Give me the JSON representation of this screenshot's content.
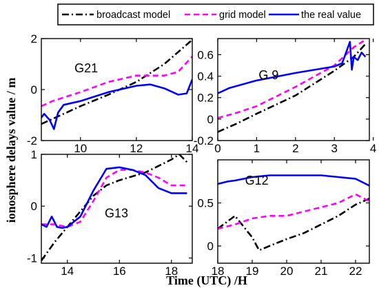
{
  "figure": {
    "ylabel": "ionosphere delays value / m",
    "xlabel": "Time (UTC) /H"
  },
  "legend": [
    {
      "name": "broadcast model",
      "color": "#000000",
      "dash": "dashdot"
    },
    {
      "name": "grid model",
      "color": "#ff00ff",
      "dash": "dashed"
    },
    {
      "name": "the real value",
      "color": "#0000ff",
      "dash": "solid"
    }
  ],
  "chart_data": [
    {
      "type": "line",
      "title": "G21",
      "xlim": [
        8.6,
        14
      ],
      "ylim": [
        -2,
        2
      ],
      "xticks": [
        10,
        12,
        14
      ],
      "yticks": [
        -2,
        0,
        2
      ],
      "series": [
        {
          "name": "broadcast model",
          "x": [
            8.6,
            9,
            10,
            11,
            12,
            13,
            14
          ],
          "y": [
            -1.35,
            -1.15,
            -0.65,
            -0.2,
            0.3,
            1.0,
            1.95
          ]
        },
        {
          "name": "grid model",
          "x": [
            8.6,
            9,
            10,
            11,
            12,
            12.5,
            13,
            13.5,
            14
          ],
          "y": [
            -0.65,
            -0.45,
            -0.1,
            0.3,
            0.55,
            0.55,
            0.55,
            0.7,
            1.3
          ]
        },
        {
          "name": "the real value",
          "x": [
            8.6,
            8.7,
            8.9,
            9.05,
            9.2,
            9.4,
            10,
            11,
            12,
            12.5,
            13,
            13.5,
            13.8,
            14
          ],
          "y": [
            -1.1,
            -0.95,
            -1.2,
            -1.55,
            -0.9,
            -0.6,
            -0.45,
            -0.1,
            0.15,
            0.2,
            0.05,
            -0.2,
            -0.15,
            0.4
          ]
        }
      ]
    },
    {
      "type": "line",
      "title": "G 9",
      "xlim": [
        0,
        3.9
      ],
      "ylim": [
        -0.2,
        0.75
      ],
      "xticks": [
        0,
        1,
        2,
        3,
        4
      ],
      "yticks": [
        -0.2,
        0,
        0.2,
        0.4,
        0.6
      ],
      "series": [
        {
          "name": "broadcast model",
          "x": [
            0,
            0.5,
            1,
            2,
            3,
            3.5,
            3.8
          ],
          "y": [
            -0.12,
            -0.04,
            0.05,
            0.22,
            0.45,
            0.58,
            0.7
          ]
        },
        {
          "name": "grid model",
          "x": [
            0,
            0.5,
            1,
            2,
            3,
            3.5,
            3.8
          ],
          "y": [
            0.01,
            0.06,
            0.12,
            0.3,
            0.5,
            0.67,
            0.74
          ]
        },
        {
          "name": "the real value",
          "x": [
            0,
            0.3,
            1,
            2,
            3,
            3.2,
            3.3,
            3.4,
            3.45,
            3.5,
            3.6,
            3.7,
            3.8
          ],
          "y": [
            0.24,
            0.29,
            0.36,
            0.43,
            0.49,
            0.52,
            0.62,
            0.72,
            0.46,
            0.58,
            0.55,
            0.62,
            0.58
          ]
        }
      ]
    },
    {
      "type": "line",
      "title": "G13",
      "xlim": [
        13,
        18.8
      ],
      "ylim": [
        -1.1,
        1
      ],
      "xticks": [
        14,
        16,
        18
      ],
      "yticks": [
        -1,
        0,
        1
      ],
      "series": [
        {
          "name": "broadcast model",
          "x": [
            13,
            13.5,
            14,
            14.5,
            15,
            15.5,
            16,
            17,
            18,
            18.3,
            18.6
          ],
          "y": [
            -1.05,
            -0.7,
            -0.4,
            -0.1,
            0.2,
            0.4,
            0.5,
            0.65,
            0.9,
            1.0,
            0.85
          ]
        },
        {
          "name": "grid model",
          "x": [
            13,
            13.5,
            14,
            14.5,
            15,
            15.5,
            16,
            16.5,
            17,
            17.5,
            18,
            18.6
          ],
          "y": [
            -0.35,
            -0.35,
            -0.4,
            -0.3,
            0.1,
            0.55,
            0.7,
            0.7,
            0.65,
            0.55,
            0.4,
            0.4
          ]
        },
        {
          "name": "the real value",
          "x": [
            13,
            13.2,
            13.4,
            13.6,
            13.8,
            14,
            14.5,
            15,
            15.5,
            16,
            16.5,
            17,
            17.5,
            18,
            18.6
          ],
          "y": [
            -0.35,
            -0.4,
            -0.2,
            -0.4,
            -0.42,
            -0.4,
            -0.2,
            0.3,
            0.72,
            0.75,
            0.7,
            0.6,
            0.35,
            0.25,
            0.25
          ]
        }
      ]
    },
    {
      "type": "line",
      "title": "G12",
      "xlim": [
        18,
        22.4
      ],
      "ylim": [
        -0.2,
        1
      ],
      "xticks": [
        18,
        19,
        20,
        21,
        22
      ],
      "yticks": [
        0,
        0.5
      ],
      "series": [
        {
          "name": "broadcast model",
          "x": [
            18,
            18.5,
            19,
            19.2,
            19.5,
            20,
            20.5,
            21,
            21.5,
            22,
            22.4
          ],
          "y": [
            0.2,
            0.35,
            0.1,
            -0.05,
            0.0,
            0.08,
            0.15,
            0.25,
            0.35,
            0.48,
            0.55
          ]
        },
        {
          "name": "grid model",
          "x": [
            18,
            18.5,
            19,
            19.5,
            20,
            20.5,
            21,
            21.5,
            22,
            22.4
          ],
          "y": [
            0.2,
            0.25,
            0.32,
            0.35,
            0.35,
            0.4,
            0.45,
            0.5,
            0.6,
            0.52
          ]
        },
        {
          "name": "the real value",
          "x": [
            18,
            18.3,
            18.5,
            19,
            19.5,
            20,
            20.5,
            21,
            21.5,
            22,
            22.4
          ],
          "y": [
            0.72,
            0.75,
            0.76,
            0.8,
            0.82,
            0.82,
            0.82,
            0.82,
            0.8,
            0.78,
            0.7
          ]
        }
      ]
    }
  ]
}
